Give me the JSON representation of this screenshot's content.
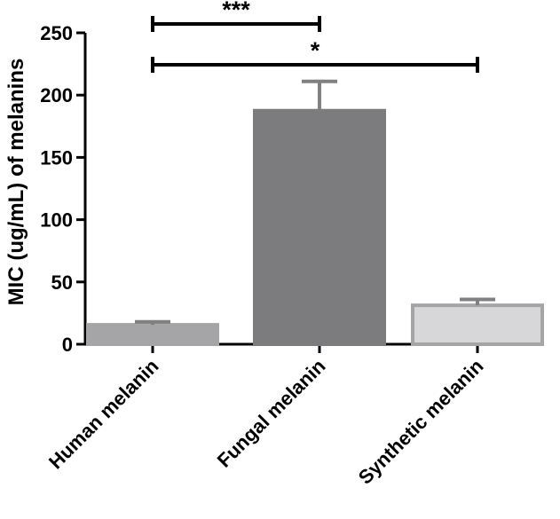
{
  "chart_data": {
    "type": "bar",
    "title": "",
    "xlabel": "",
    "ylabel": "MIC (ug/mL) of melanins",
    "categories": [
      "Human melanin",
      "Fungal melanin",
      "Synthetic melanin"
    ],
    "values": [
      15.6,
      187.5,
      31.25
    ],
    "error_upper": [
      18,
      211,
      36
    ],
    "ylim": [
      0,
      250
    ],
    "yticks": [
      "0",
      "50",
      "100",
      "150",
      "200",
      "250"
    ],
    "grid": false,
    "legend": "none",
    "colors": {
      "bar_fill": [
        "#a5a5a7",
        "#7c7c7e",
        "#d7d7d9"
      ],
      "bar_stroke": [
        "#a5a5a7",
        "#7c7c7e",
        "#a5a5a7"
      ],
      "axis": "#000000",
      "error_bar": "#808080"
    },
    "significance": [
      {
        "from": 0,
        "to": 1,
        "label": "***"
      },
      {
        "from": 0,
        "to": 2,
        "label": "*"
      }
    ]
  }
}
